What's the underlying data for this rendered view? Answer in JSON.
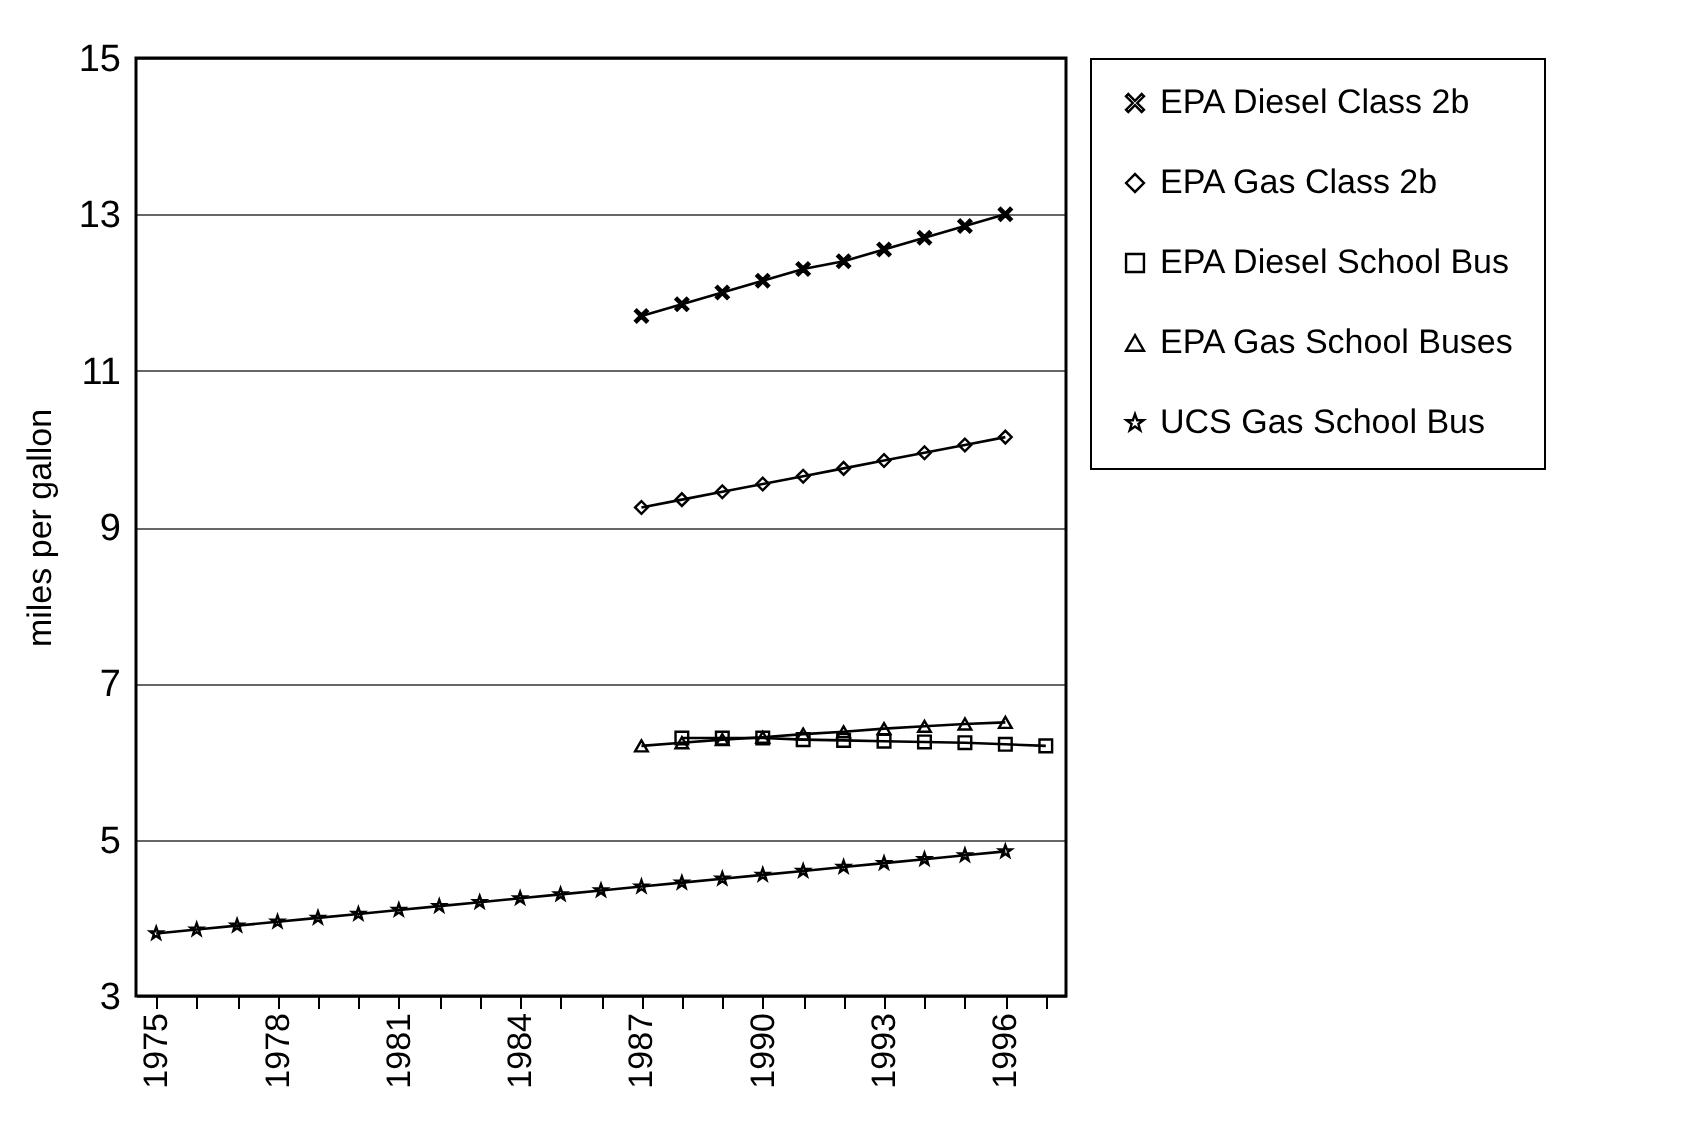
{
  "chart_data": {
    "type": "line",
    "ylabel": "miles per gallon",
    "categories": [
      "1975",
      null,
      null,
      "1978",
      null,
      null,
      "1981",
      null,
      null,
      "1984",
      null,
      null,
      "1987",
      null,
      null,
      "1990",
      null,
      null,
      "1993",
      null,
      null,
      "1996",
      null
    ],
    "ylim": [
      3,
      15
    ],
    "yticks": [
      3,
      5,
      7,
      9,
      11,
      13,
      15
    ],
    "grid": "y",
    "legend": "right",
    "series": [
      {
        "name": "EPA Diesel Class 2b",
        "color": "#000000",
        "marker": "cross",
        "values": [
          null,
          null,
          null,
          null,
          null,
          null,
          null,
          null,
          null,
          null,
          null,
          null,
          11.7,
          11.85,
          12.0,
          12.15,
          12.3,
          12.4,
          12.55,
          12.7,
          12.85,
          13.0,
          null
        ]
      },
      {
        "name": "EPA Gas Class 2b",
        "color": "#000000",
        "marker": "diamond",
        "values": [
          null,
          null,
          null,
          null,
          null,
          null,
          null,
          null,
          null,
          null,
          null,
          null,
          9.25,
          9.35,
          9.45,
          9.55,
          9.65,
          9.75,
          9.85,
          9.95,
          10.05,
          10.15,
          null
        ]
      },
      {
        "name": "EPA Diesel School Bus",
        "color": "#000000",
        "marker": "square",
        "values": [
          null,
          null,
          null,
          null,
          null,
          null,
          null,
          null,
          null,
          null,
          null,
          null,
          null,
          6.3,
          6.3,
          6.3,
          6.28,
          6.27,
          6.26,
          6.25,
          6.24,
          6.22,
          6.2
        ]
      },
      {
        "name": "EPA Gas School Buses",
        "color": "#000000",
        "marker": "triangle",
        "values": [
          null,
          null,
          null,
          null,
          null,
          null,
          null,
          null,
          null,
          null,
          null,
          null,
          6.2,
          6.24,
          6.28,
          6.31,
          6.35,
          6.38,
          6.42,
          6.45,
          6.48,
          6.5,
          null
        ]
      },
      {
        "name": "UCS Gas School Bus",
        "color": "#000000",
        "marker": "star",
        "values": [
          3.8,
          3.85,
          3.9,
          3.95,
          4.0,
          4.05,
          4.1,
          4.15,
          4.2,
          4.25,
          4.3,
          4.35,
          4.4,
          4.45,
          4.5,
          4.55,
          4.6,
          4.65,
          4.7,
          4.75,
          4.8,
          4.85,
          null
        ]
      }
    ]
  }
}
